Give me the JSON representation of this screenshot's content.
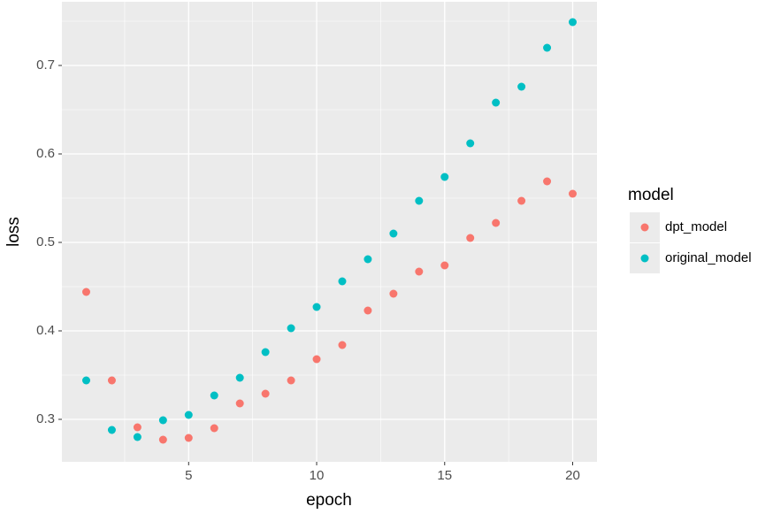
{
  "chart_data": {
    "type": "scatter",
    "xlabel": "epoch",
    "ylabel": "loss",
    "x": [
      1,
      2,
      3,
      4,
      5,
      6,
      7,
      8,
      9,
      10,
      11,
      12,
      13,
      14,
      15,
      16,
      17,
      18,
      19,
      20
    ],
    "series": [
      {
        "name": "dpt_model",
        "color": "#F8766D",
        "values": [
          0.444,
          0.344,
          0.291,
          0.277,
          0.279,
          0.29,
          0.318,
          0.329,
          0.344,
          0.368,
          0.384,
          0.423,
          0.442,
          0.467,
          0.474,
          0.505,
          0.522,
          0.547,
          0.569,
          0.555
        ]
      },
      {
        "name": "original_model",
        "color": "#00BFC4",
        "values": [
          0.344,
          0.288,
          0.28,
          0.299,
          0.305,
          0.327,
          0.347,
          0.376,
          0.403,
          0.427,
          0.456,
          0.481,
          0.51,
          0.547,
          0.574,
          0.612,
          0.658,
          0.676,
          0.72,
          0.749
        ]
      }
    ],
    "legend_title": "model",
    "legend_position": "right",
    "xlim": [
      0.05,
      20.95
    ],
    "xticks": [
      5,
      10,
      15,
      20
    ],
    "ylim": [
      0.252,
      0.772
    ],
    "yticks": [
      0.3,
      0.4,
      0.5,
      0.6,
      0.7
    ],
    "grid": true
  }
}
